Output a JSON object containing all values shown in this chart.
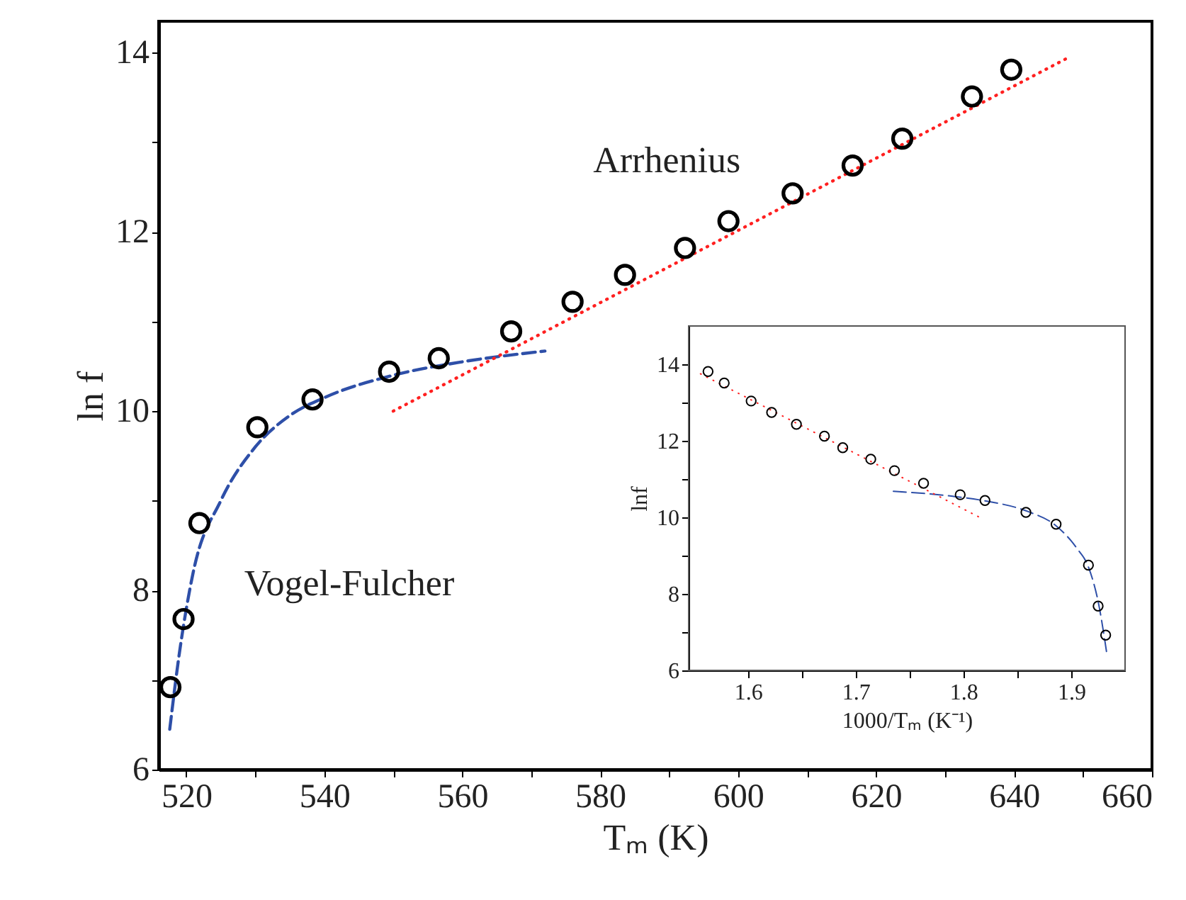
{
  "chart_data": [
    {
      "type": "scatter",
      "xlabel": "Tₘ (K)",
      "ylabel": "ln f",
      "xlim": [
        516,
        660
      ],
      "ylim": [
        6,
        14.35
      ],
      "xticks": [
        520,
        {
          "value": 530,
          "label": null
        },
        540,
        {
          "value": 550,
          "label": null
        },
        560,
        {
          "value": 570,
          "label": null
        },
        580,
        {
          "value": 590,
          "label": null
        },
        600,
        {
          "value": 610,
          "label": null
        },
        620,
        {
          "value": 630,
          "label": null
        },
        640,
        {
          "value": 650,
          "label": null
        },
        660
      ],
      "yticks": [
        6,
        {
          "value": 7,
          "label": null
        },
        8,
        {
          "value": 9,
          "label": null
        },
        10,
        {
          "value": 11,
          "label": null
        },
        12,
        {
          "value": 13,
          "label": null
        },
        14
      ],
      "grid": false,
      "series": [
        {
          "type": "line",
          "name": "Vogel-Fulcher",
          "color": "#2e4fa8",
          "line_style": "dashed",
          "x": [
            517.6,
            519,
            521,
            525,
            530,
            535,
            540,
            550,
            560,
            572
          ],
          "values": [
            6.45,
            7.3,
            8.2,
            9.0,
            9.6,
            9.95,
            10.15,
            10.4,
            10.55,
            10.67
          ]
        },
        {
          "type": "line",
          "name": "Arrhenius",
          "color": "#ff2020",
          "line_style": "dotted",
          "x": [
            550,
            648
          ],
          "values": [
            10.0,
            13.95
          ]
        },
        {
          "color": "#000000",
          "marker": "circle",
          "x": [
            517.7,
            519.6,
            521.9,
            530.3,
            538.3,
            549.4,
            556.6,
            567.1,
            576.0,
            583.6,
            592.3,
            598.6,
            607.9,
            616.6,
            623.8,
            633.9,
            639.6
          ],
          "values": [
            6.92,
            7.68,
            8.75,
            9.82,
            10.13,
            10.44,
            10.59,
            10.89,
            11.22,
            11.52,
            11.82,
            12.12,
            12.43,
            12.74,
            13.04,
            13.51,
            13.81
          ]
        }
      ]
    },
    {
      "type": "scatter",
      "xlabel": "1000/Tₘ (K⁻¹)",
      "ylabel": "lnf",
      "xlim": [
        1.545,
        1.95
      ],
      "ylim": [
        6,
        15
      ],
      "xticks": [
        1.6,
        {
          "value": 1.65,
          "label": null
        },
        1.7,
        {
          "value": 1.75,
          "label": null
        },
        1.8,
        {
          "value": 1.85,
          "label": null
        },
        1.9
      ],
      "yticks": [
        6,
        {
          "value": 7,
          "label": null
        },
        8,
        {
          "value": 9,
          "label": null
        },
        10,
        {
          "value": 11,
          "label": null
        },
        12,
        {
          "value": 13,
          "label": null
        },
        14
      ],
      "grid": false,
      "series": [
        {
          "type": "line",
          "color": "#2e4fa8",
          "line_style": "dashed",
          "x": [
            1.735,
            1.79,
            1.82,
            1.86,
            1.885,
            1.905,
            1.916,
            1.925,
            1.933
          ],
          "values": [
            10.68,
            10.55,
            10.43,
            10.15,
            9.8,
            9.2,
            8.7,
            7.8,
            6.45
          ]
        },
        {
          "type": "line",
          "color": "#ff2020",
          "line_style": "dotted",
          "x": [
            1.556,
            1.815
          ],
          "values": [
            13.75,
            10.0
          ]
        },
        {
          "color": "#000000",
          "marker": "circle",
          "x": [
            1.932,
            1.925,
            1.916,
            1.886,
            1.858,
            1.82,
            1.797,
            1.763,
            1.736,
            1.714,
            1.688,
            1.671,
            1.645,
            1.622,
            1.603,
            1.578,
            1.563
          ],
          "values": [
            6.92,
            7.68,
            8.75,
            9.82,
            10.13,
            10.44,
            10.59,
            10.89,
            11.22,
            11.52,
            11.82,
            12.12,
            12.43,
            12.74,
            13.04,
            13.51,
            13.81
          ]
        }
      ]
    }
  ]
}
